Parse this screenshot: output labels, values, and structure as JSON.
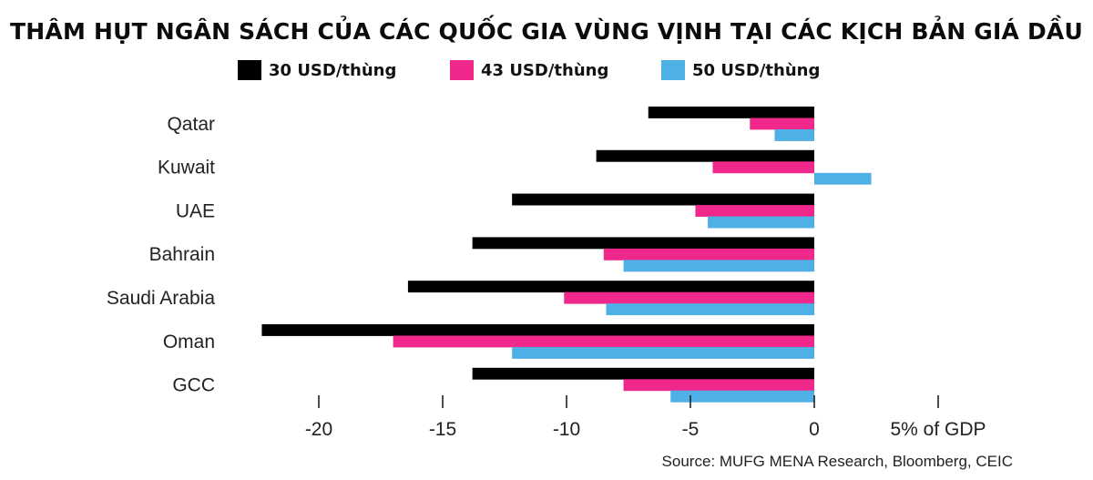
{
  "chart_data": {
    "type": "bar",
    "orientation": "horizontal",
    "title": "THÂM HỤT NGÂN SÁCH CỦA CÁC QUỐC GIA VÙNG VỊNH TẠI CÁC KỊCH BẢN GIÁ DẦU",
    "categories": [
      "Qatar",
      "Kuwait",
      "UAE",
      "Bahrain",
      "Saudi Arabia",
      "Oman",
      "GCC"
    ],
    "series": [
      {
        "name": "30 USD/thùng",
        "color": "#000000",
        "values": [
          -6.7,
          -8.8,
          -12.2,
          -13.8,
          -16.4,
          -22.3,
          -13.8
        ]
      },
      {
        "name": "43 USD/thùng",
        "color": "#f0288c",
        "values": [
          -2.6,
          -4.1,
          -4.8,
          -8.5,
          -10.1,
          -17.0,
          -7.7
        ]
      },
      {
        "name": "50 USD/thùng",
        "color": "#4fb0e6",
        "values": [
          -1.6,
          2.3,
          -4.3,
          -7.7,
          -8.4,
          -12.2,
          -5.8
        ]
      }
    ],
    "xlim": [
      -22.5,
      5
    ],
    "xticks": [
      -20,
      -15,
      -10,
      -5,
      0,
      5
    ],
    "xtick_labels": [
      "-20",
      "-15",
      "-10",
      "-5",
      "0",
      "5% of GDP"
    ],
    "xlabel": "% of GDP",
    "ylabel": "",
    "source": "Source: MUFG MENA Research, Bloomberg, CEIC"
  }
}
